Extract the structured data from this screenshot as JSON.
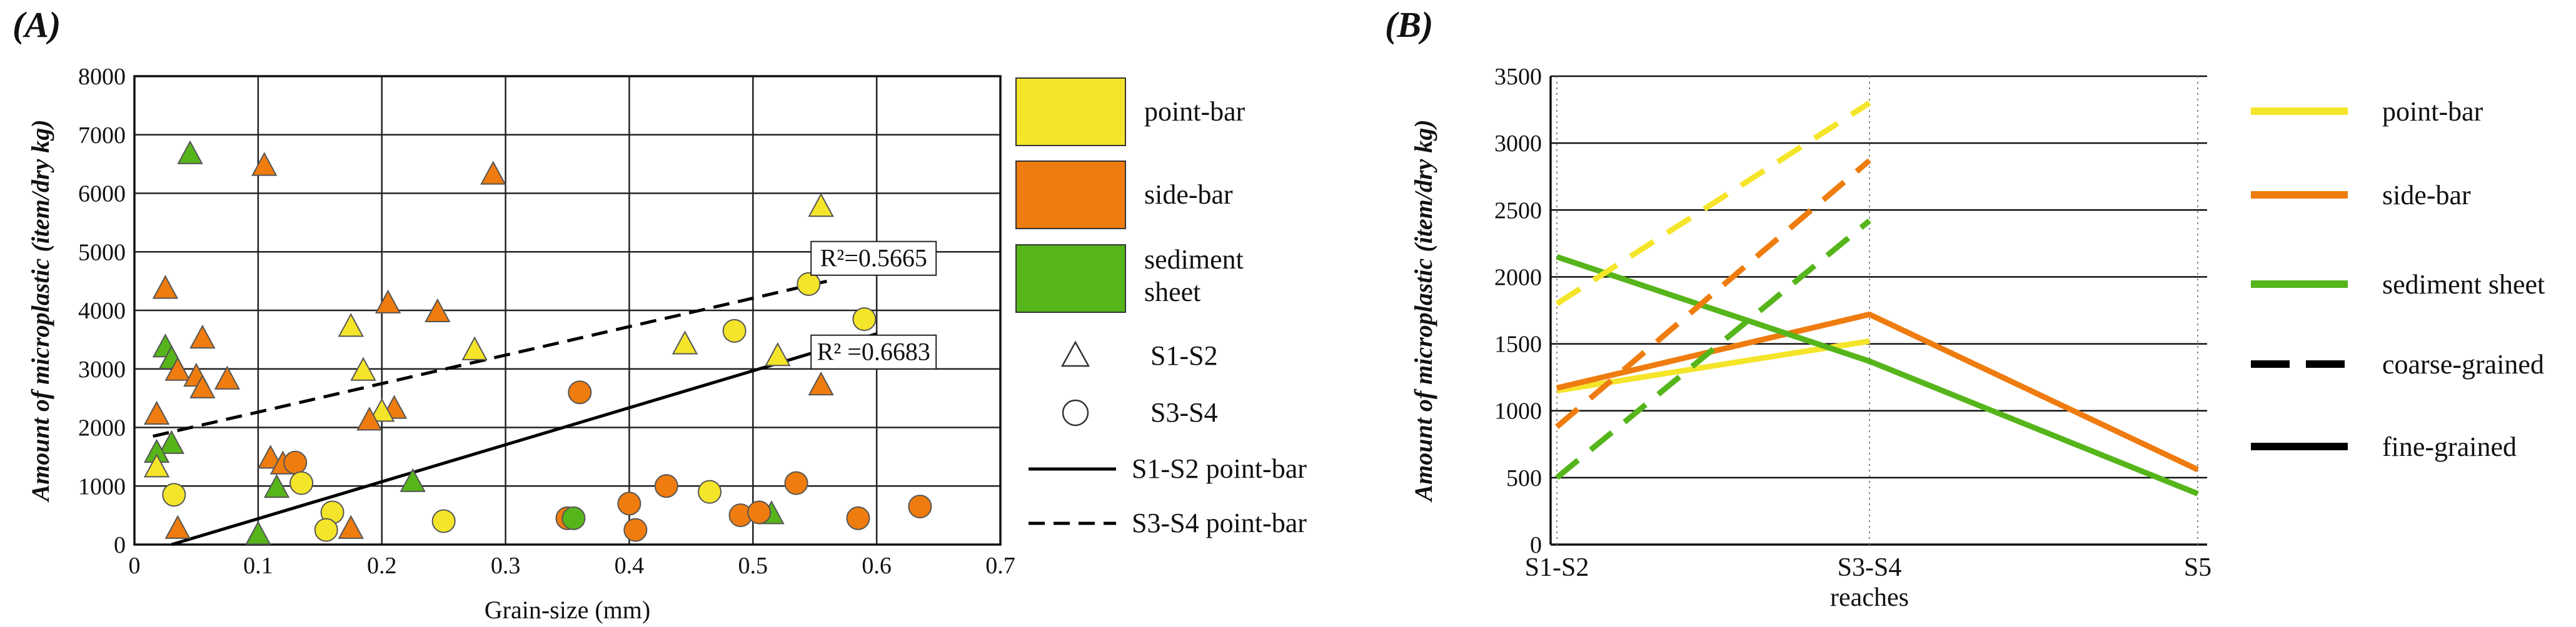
{
  "chart_data": [
    {
      "panel": "(A)",
      "type": "scatter",
      "xlabel": "Grain-size (mm)",
      "ylabel": "Amount of microplastic  (item/dry kg)",
      "xlim": [
        0,
        0.7
      ],
      "ylim": [
        0,
        8000
      ],
      "xticks": [
        "0",
        "0.1",
        "0.2",
        "0.3",
        "0.4",
        "0.5",
        "0.6",
        "0.7"
      ],
      "yticks": [
        "0",
        "1000",
        "2000",
        "3000",
        "4000",
        "5000",
        "6000",
        "7000",
        "8000"
      ],
      "grid": true,
      "colors": {
        "point-bar": "#f5e52a",
        "side-bar": "#ef7c0e",
        "sediment-sheet": "#55b51a"
      },
      "legend": [
        {
          "key": "point-bar",
          "label": "point-bar",
          "kind": "swatch"
        },
        {
          "key": "side-bar",
          "label": "side-bar",
          "kind": "swatch"
        },
        {
          "key": "sediment-sheet",
          "label": "sediment\nsheet",
          "kind": "swatch"
        },
        {
          "key": "S1-S2",
          "label": "S1-S2",
          "kind": "triangle"
        },
        {
          "key": "S3-S4",
          "label": "S3-S4",
          "kind": "circle"
        },
        {
          "key": "s12-line",
          "label": "S1-S2 point-bar",
          "kind": "solid"
        },
        {
          "key": "s34-line",
          "label": "S3-S4 point-bar",
          "kind": "dashed"
        }
      ],
      "points": [
        {
          "x": 0.045,
          "y": 6650,
          "group": "sediment-sheet",
          "site": "S1-S2"
        },
        {
          "x": 0.105,
          "y": 6450,
          "group": "side-bar",
          "site": "S1-S2"
        },
        {
          "x": 0.29,
          "y": 6300,
          "group": "side-bar",
          "site": "S1-S2"
        },
        {
          "x": 0.555,
          "y": 5750,
          "group": "point-bar",
          "site": "S1-S2"
        },
        {
          "x": 0.025,
          "y": 4350,
          "group": "side-bar",
          "site": "S1-S2"
        },
        {
          "x": 0.205,
          "y": 4100,
          "group": "side-bar",
          "site": "S1-S2"
        },
        {
          "x": 0.245,
          "y": 3950,
          "group": "side-bar",
          "site": "S1-S2"
        },
        {
          "x": 0.175,
          "y": 3700,
          "group": "point-bar",
          "site": "S1-S2"
        },
        {
          "x": 0.055,
          "y": 3500,
          "group": "side-bar",
          "site": "S1-S2"
        },
        {
          "x": 0.445,
          "y": 3400,
          "group": "point-bar",
          "site": "S1-S2"
        },
        {
          "x": 0.025,
          "y": 3350,
          "group": "sediment-sheet",
          "site": "S1-S2"
        },
        {
          "x": 0.275,
          "y": 3300,
          "group": "point-bar",
          "site": "S1-S2"
        },
        {
          "x": 0.52,
          "y": 3200,
          "group": "point-bar",
          "site": "S1-S2"
        },
        {
          "x": 0.03,
          "y": 3150,
          "group": "sediment-sheet",
          "site": "S1-S2"
        },
        {
          "x": 0.035,
          "y": 2950,
          "group": "side-bar",
          "site": "S1-S2"
        },
        {
          "x": 0.185,
          "y": 2950,
          "group": "point-bar",
          "site": "S1-S2"
        },
        {
          "x": 0.05,
          "y": 2850,
          "group": "side-bar",
          "site": "S1-S2"
        },
        {
          "x": 0.075,
          "y": 2800,
          "group": "side-bar",
          "site": "S1-S2"
        },
        {
          "x": 0.055,
          "y": 2650,
          "group": "side-bar",
          "site": "S1-S2"
        },
        {
          "x": 0.555,
          "y": 2700,
          "group": "side-bar",
          "site": "S1-S2"
        },
        {
          "x": 0.21,
          "y": 2300,
          "group": "side-bar",
          "site": "S1-S2"
        },
        {
          "x": 0.2,
          "y": 2250,
          "group": "point-bar",
          "site": "S1-S2"
        },
        {
          "x": 0.018,
          "y": 2200,
          "group": "side-bar",
          "site": "S1-S2"
        },
        {
          "x": 0.19,
          "y": 2100,
          "group": "side-bar",
          "site": "S1-S2"
        },
        {
          "x": 0.03,
          "y": 1700,
          "group": "sediment-sheet",
          "site": "S1-S2"
        },
        {
          "x": 0.018,
          "y": 1550,
          "group": "sediment-sheet",
          "site": "S1-S2"
        },
        {
          "x": 0.11,
          "y": 1450,
          "group": "side-bar",
          "site": "S1-S2"
        },
        {
          "x": 0.12,
          "y": 1350,
          "group": "side-bar",
          "site": "S1-S2"
        },
        {
          "x": 0.018,
          "y": 1300,
          "group": "point-bar",
          "site": "S1-S2"
        },
        {
          "x": 0.225,
          "y": 1050,
          "group": "sediment-sheet",
          "site": "S1-S2"
        },
        {
          "x": 0.115,
          "y": 950,
          "group": "sediment-sheet",
          "site": "S1-S2"
        },
        {
          "x": 0.035,
          "y": 250,
          "group": "side-bar",
          "site": "S1-S2"
        },
        {
          "x": 0.175,
          "y": 250,
          "group": "side-bar",
          "site": "S1-S2"
        },
        {
          "x": 0.1,
          "y": 150,
          "group": "sediment-sheet",
          "site": "S1-S2"
        },
        {
          "x": 0.515,
          "y": 500,
          "group": "sediment-sheet",
          "site": "S1-S2"
        },
        {
          "x": 0.545,
          "y": 4450,
          "group": "point-bar",
          "site": "S3-S4"
        },
        {
          "x": 0.59,
          "y": 3850,
          "group": "point-bar",
          "site": "S3-S4"
        },
        {
          "x": 0.485,
          "y": 3650,
          "group": "point-bar",
          "site": "S3-S4"
        },
        {
          "x": 0.36,
          "y": 2600,
          "group": "side-bar",
          "site": "S3-S4"
        },
        {
          "x": 0.13,
          "y": 1400,
          "group": "side-bar",
          "site": "S3-S4"
        },
        {
          "x": 0.135,
          "y": 1050,
          "group": "point-bar",
          "site": "S3-S4"
        },
        {
          "x": 0.535,
          "y": 1050,
          "group": "side-bar",
          "site": "S3-S4"
        },
        {
          "x": 0.43,
          "y": 1000,
          "group": "side-bar",
          "site": "S3-S4"
        },
        {
          "x": 0.465,
          "y": 900,
          "group": "point-bar",
          "site": "S3-S4"
        },
        {
          "x": 0.032,
          "y": 850,
          "group": "point-bar",
          "site": "S3-S4"
        },
        {
          "x": 0.4,
          "y": 700,
          "group": "side-bar",
          "site": "S3-S4"
        },
        {
          "x": 0.635,
          "y": 650,
          "group": "side-bar",
          "site": "S3-S4"
        },
        {
          "x": 0.16,
          "y": 550,
          "group": "point-bar",
          "site": "S3-S4"
        },
        {
          "x": 0.49,
          "y": 500,
          "group": "side-bar",
          "site": "S3-S4"
        },
        {
          "x": 0.505,
          "y": 550,
          "group": "side-bar",
          "site": "S3-S4"
        },
        {
          "x": 0.35,
          "y": 450,
          "group": "side-bar",
          "site": "S3-S4"
        },
        {
          "x": 0.355,
          "y": 450,
          "group": "sediment-sheet",
          "site": "S3-S4"
        },
        {
          "x": 0.585,
          "y": 450,
          "group": "side-bar",
          "site": "S3-S4"
        },
        {
          "x": 0.25,
          "y": 400,
          "group": "point-bar",
          "site": "S3-S4"
        },
        {
          "x": 0.155,
          "y": 250,
          "group": "point-bar",
          "site": "S3-S4"
        },
        {
          "x": 0.405,
          "y": 250,
          "group": "side-bar",
          "site": "S3-S4"
        }
      ],
      "trendlines": [
        {
          "name": "S1-S2 point-bar",
          "style": "solid",
          "x": [
            0.03,
            0.6
          ],
          "y": [
            0,
            3600
          ],
          "r2_label": "R² =0.6683",
          "label_at": {
            "x": 0.55,
            "y": 3150
          }
        },
        {
          "name": "S3-S4 point-bar",
          "style": "dashed",
          "x": [
            0.015,
            0.56
          ],
          "y": [
            1850,
            4500
          ],
          "r2_label": "R²=0.5665",
          "label_at": {
            "x": 0.55,
            "y": 4750
          }
        }
      ]
    },
    {
      "panel": "(B)",
      "type": "line",
      "xlabel": "reaches",
      "ylabel": "Amount of microplastic  (item/dry kg)",
      "categories": [
        "S1-S2",
        "S3-S4",
        "S5"
      ],
      "ylim": [
        0,
        3500
      ],
      "yticks": [
        "0",
        "500",
        "1000",
        "1500",
        "2000",
        "2500",
        "3000",
        "3500"
      ],
      "grid": true,
      "colors": {
        "point-bar": "#f5e52a",
        "side-bar": "#ef7c0e",
        "sediment-sheet": "#55b51a"
      },
      "series": [
        {
          "name": "point-bar",
          "style": "fine-grained",
          "values": [
            1150,
            1520,
            null
          ]
        },
        {
          "name": "side-bar",
          "style": "fine-grained",
          "values": [
            1170,
            1720,
            560
          ]
        },
        {
          "name": "sediment sheet",
          "style": "fine-grained",
          "values": [
            2150,
            1370,
            380
          ]
        },
        {
          "name": "point-bar",
          "style": "coarse-grained",
          "values": [
            1800,
            3300,
            null
          ]
        },
        {
          "name": "side-bar",
          "style": "coarse-grained",
          "values": [
            880,
            2870,
            null
          ]
        },
        {
          "name": "sediment sheet",
          "style": "coarse-grained",
          "values": [
            500,
            2420,
            null
          ]
        }
      ],
      "legend": [
        {
          "label": "point-bar",
          "key": "point-bar",
          "kind": "line"
        },
        {
          "label": "side-bar",
          "key": "side-bar",
          "kind": "line"
        },
        {
          "label": "sediment sheet",
          "key": "sediment-sheet",
          "kind": "line"
        },
        {
          "label": "coarse-grained",
          "key": "black",
          "kind": "dashed"
        },
        {
          "label": "fine-grained",
          "key": "black",
          "kind": "solid"
        }
      ]
    }
  ]
}
